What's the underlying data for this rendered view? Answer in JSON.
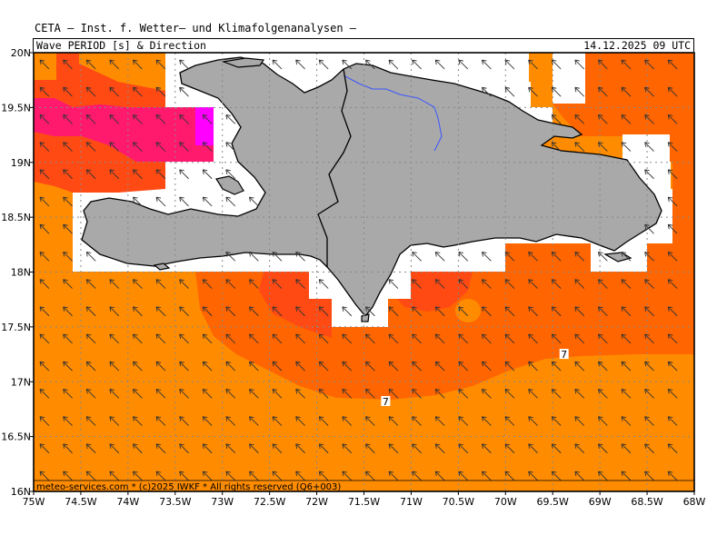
{
  "header": {
    "title": "CETA — Inst. f. Wetter— und Klimafolgenanalysen —",
    "product": "Wave PERIOD [s] & Direction",
    "datetime": "14.12.2025 09 UTC"
  },
  "footer": {
    "credit": "meteo-services.com * (c)2025 IWKF * All rights reserved (Q6+003)"
  },
  "axes": {
    "lon_labels": [
      "75W",
      "74.5W",
      "74W",
      "73.5W",
      "73W",
      "72.5W",
      "72W",
      "71.5W",
      "71W",
      "70.5W",
      "70W",
      "69.5W",
      "69W",
      "68.5W",
      "68W"
    ],
    "lat_labels": [
      "20N",
      "19.5N",
      "19N",
      "18.5N",
      "18N",
      "17.5N",
      "17N",
      "16.5N",
      "16N"
    ],
    "lon_range": [
      -75,
      -68
    ],
    "lat_range": [
      16,
      20
    ]
  },
  "contours": [
    {
      "label": "7",
      "lon": -71.27,
      "lat": 16.82
    },
    {
      "label": "7",
      "lon": -69.38,
      "lat": 17.25
    }
  ],
  "colors": {
    "land": "#a9a9a9",
    "ocean_low": "#ff8c00",
    "ocean_mid": "#ff6500",
    "ocean_high": "#ff4a14",
    "ocean_max": "#ff1a6e",
    "ocean_peak": "#ff00ff",
    "river": "#3a55ff"
  },
  "arrow_direction_deg": 135
}
